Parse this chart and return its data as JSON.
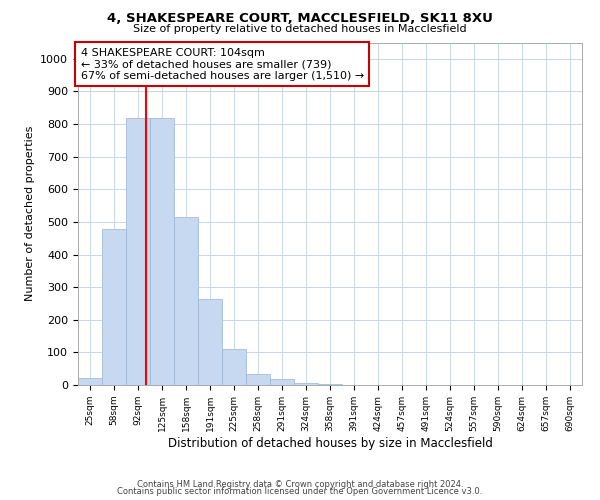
{
  "title1": "4, SHAKESPEARE COURT, MACCLESFIELD, SK11 8XU",
  "title2": "Size of property relative to detached houses in Macclesfield",
  "xlabel": "Distribution of detached houses by size in Macclesfield",
  "ylabel": "Number of detached properties",
  "categories": [
    "25sqm",
    "58sqm",
    "92sqm",
    "125sqm",
    "158sqm",
    "191sqm",
    "225sqm",
    "258sqm",
    "291sqm",
    "324sqm",
    "358sqm",
    "391sqm",
    "424sqm",
    "457sqm",
    "491sqm",
    "524sqm",
    "557sqm",
    "590sqm",
    "624sqm",
    "657sqm",
    "690sqm"
  ],
  "values": [
    20,
    478,
    820,
    820,
    515,
    265,
    110,
    35,
    18,
    5,
    2,
    1,
    0,
    0,
    0,
    0,
    0,
    0,
    0,
    0,
    0
  ],
  "bar_color": "#c6d9f1",
  "bar_edge_color": "#9ab5d5",
  "ylim": [
    0,
    1050
  ],
  "yticks": [
    0,
    100,
    200,
    300,
    400,
    500,
    600,
    700,
    800,
    900,
    1000
  ],
  "red_line_x": 2.33,
  "annotation_line1": "4 SHAKESPEARE COURT: 104sqm",
  "annotation_line2": "← 33% of detached houses are smaller (739)",
  "annotation_line3": "67% of semi-detached houses are larger (1,510) →",
  "annotation_box_color": "#ffffff",
  "annotation_box_edge": "#cc0000",
  "footer1": "Contains HM Land Registry data © Crown copyright and database right 2024.",
  "footer2": "Contains public sector information licensed under the Open Government Licence v3.0.",
  "background_color": "#ffffff",
  "grid_color": "#c8d8e8"
}
